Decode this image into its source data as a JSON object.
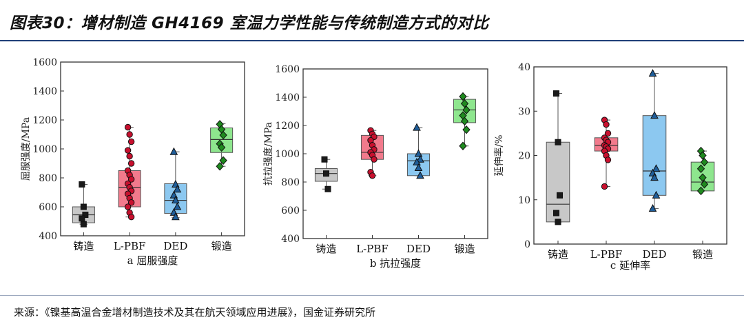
{
  "header": {
    "title": "图表30：增材制造 GH4169 室温力学性能与传统制造方式的对比"
  },
  "footer": {
    "source": "来源：《镍基高温合金增材制造技术及其在航天领域应用进展》，国金证券研究所"
  },
  "colors": {
    "cast": "#c8c8c8",
    "lpbf": "#f27a8c",
    "ded": "#8cc8f0",
    "forged": "#8ee68e",
    "rule": "#1f3f78"
  },
  "chart_data": [
    {
      "type": "box",
      "caption": "a   屈服强度",
      "ylabel": "屈服强度/MPa",
      "ylim": [
        400,
        1600
      ],
      "yticks": [
        400,
        600,
        800,
        1000,
        1200,
        1400,
        1600
      ],
      "categories": [
        "铸造",
        "L-PBF",
        "DED",
        "锻造"
      ],
      "boxes": [
        {
          "q1": 490,
          "median": 545,
          "q3": 600,
          "min": 480,
          "max": 755,
          "marker": "square",
          "points": [
            755,
            600,
            545,
            520,
            480
          ]
        },
        {
          "q1": 600,
          "median": 735,
          "q3": 850,
          "min": 530,
          "max": 1150,
          "marker": "circle",
          "points": [
            1150,
            1100,
            1050,
            990,
            950,
            900,
            850,
            820,
            790,
            760,
            735,
            710,
            690,
            660,
            630,
            600,
            560,
            530
          ]
        },
        {
          "q1": 555,
          "median": 645,
          "q3": 760,
          "min": 525,
          "max": 980,
          "marker": "triangle",
          "points": [
            980,
            755,
            720,
            680,
            645,
            600,
            560,
            530
          ]
        },
        {
          "q1": 975,
          "median": 1065,
          "q3": 1145,
          "min": 880,
          "max": 1175,
          "marker": "diamond",
          "points": [
            1170,
            1135,
            1095,
            1035,
            1010,
            920,
            880
          ]
        }
      ]
    },
    {
      "type": "box",
      "caption": "b   抗拉强度",
      "ylabel": "抗拉强度/MPa",
      "ylim": [
        400,
        1600
      ],
      "yticks": [
        400,
        600,
        800,
        1000,
        1200,
        1400,
        1600
      ],
      "categories": [
        "铸造",
        "L-PBF",
        "DED",
        "锻造"
      ],
      "boxes": [
        {
          "q1": 805,
          "median": 860,
          "q3": 895,
          "min": 750,
          "max": 960,
          "marker": "square",
          "points": [
            960,
            860,
            750
          ]
        },
        {
          "q1": 960,
          "median": 1010,
          "q3": 1130,
          "min": 845,
          "max": 1165,
          "marker": "circle",
          "points": [
            1165,
            1140,
            1120,
            1095,
            1060,
            1030,
            1010,
            990,
            960,
            870,
            845
          ]
        },
        {
          "q1": 845,
          "median": 950,
          "q3": 1000,
          "min": 845,
          "max": 1185,
          "marker": "triangle",
          "points": [
            1185,
            1000,
            960,
            940,
            900,
            845
          ]
        },
        {
          "q1": 1220,
          "median": 1310,
          "q3": 1385,
          "min": 1055,
          "max": 1405,
          "marker": "diamond",
          "points": [
            1405,
            1355,
            1310,
            1270,
            1230,
            1170,
            1055
          ]
        }
      ]
    },
    {
      "type": "box",
      "caption": "c   延伸率",
      "ylabel": "延伸率/%",
      "ylim": [
        0,
        40
      ],
      "yticks": [
        0,
        10,
        20,
        30,
        40
      ],
      "categories": [
        "铸造",
        "L-PBF",
        "DED",
        "锻造"
      ],
      "boxes": [
        {
          "q1": 5,
          "median": 9,
          "q3": 23,
          "min": 5,
          "max": 34,
          "marker": "square",
          "points": [
            34,
            23,
            11,
            7,
            5
          ]
        },
        {
          "q1": 21,
          "median": 22.3,
          "q3": 24,
          "min": 13,
          "max": 28,
          "marker": "circle",
          "points": [
            28,
            27,
            25,
            24,
            23.5,
            23,
            22.3,
            22,
            21.5,
            21,
            20,
            19,
            13
          ]
        },
        {
          "q1": 11,
          "median": 16.5,
          "q3": 29,
          "min": 8,
          "max": 38.5,
          "marker": "triangle",
          "points": [
            38.5,
            29,
            17,
            16,
            15,
            11,
            8
          ]
        },
        {
          "q1": 12,
          "median": 14,
          "q3": 18.5,
          "min": 12,
          "max": 21,
          "marker": "diamond",
          "points": [
            21,
            20,
            18.5,
            17,
            15,
            13.5,
            12
          ]
        }
      ]
    }
  ]
}
